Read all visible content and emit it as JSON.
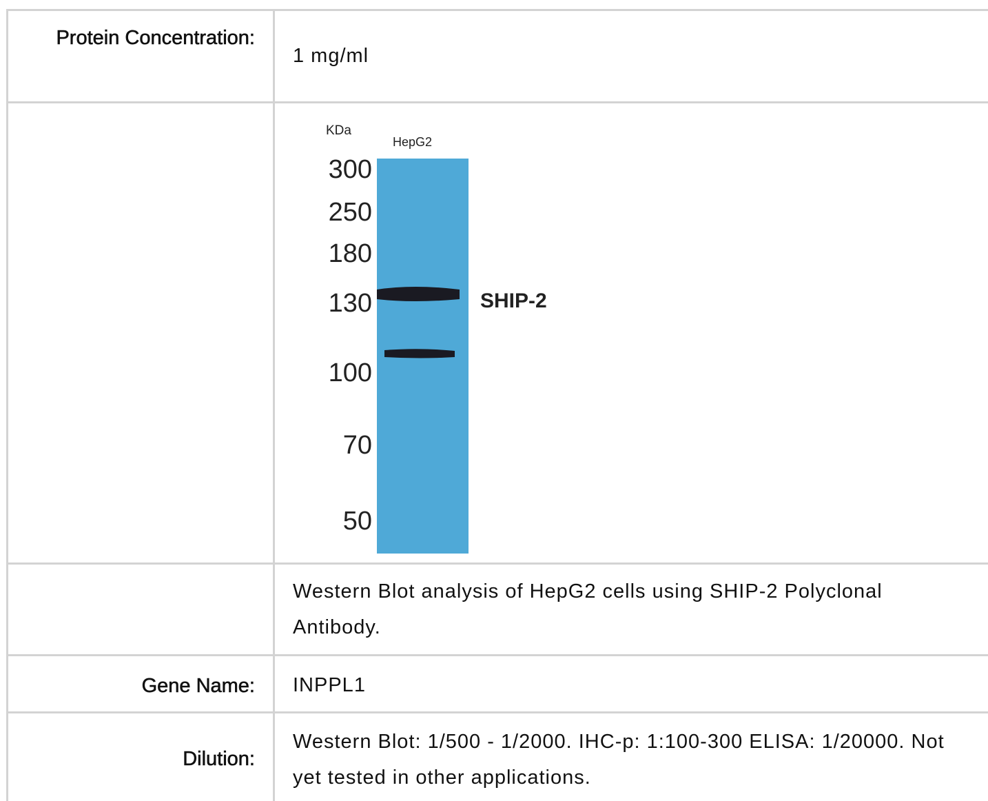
{
  "table": {
    "rows": [
      [
        "Protein Concentration:",
        "1 mg/ml"
      ],
      [
        "",
        ""
      ],
      [
        "",
        "Western Blot analysis of HepG2 cells using SHIP-2 Polyclonal Antibody."
      ],
      [
        "Gene Name:",
        "INPPL1"
      ],
      [
        "Dilution:",
        "Western Blot: 1/500 - 1/2000. IHC-p: 1:100-300 ELISA: 1/20000. Not yet tested in other applications."
      ]
    ]
  },
  "image": {
    "unit": "KDa",
    "lane": "HepG2",
    "band_label": "SHIP-2",
    "markers": [
      "300",
      "250",
      "180",
      "130",
      "100",
      "70",
      "50"
    ]
  }
}
